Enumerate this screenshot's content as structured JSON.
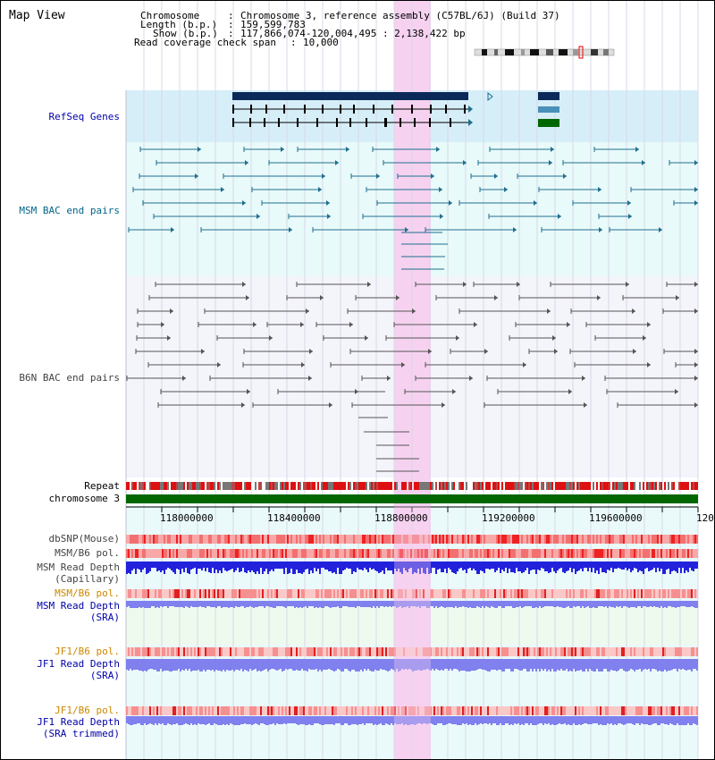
{
  "title": "Map View",
  "info": {
    "chromosome_label": "Chromosome",
    "chromosome_value": "Chromosome 3, reference assembly (C57BL/6J) (Build 37)",
    "length_label": "Length (b.p.)",
    "length_value": "159,599,783",
    "show_label": "Show (b.p.)",
    "show_value": "117,866,074-120,004,495 : 2,138,422 bp",
    "coverage_label": "Read coverage check span",
    "coverage_value": "10,000"
  },
  "tracks": {
    "refseq": "RefSeq Genes",
    "msm_bac": "MSM BAC end pairs",
    "b6n_bac": "B6N BAC end pairs",
    "repeat": "Repeat",
    "chromosome": "chromosome 3",
    "dbsnp": "dbSNP(Mouse)",
    "msm_b6_pol": "MSM/B6 pol.",
    "msm_depth_cap_1": "MSM Read Depth",
    "msm_depth_cap_2": "(Capillary)",
    "msm_b6_pol_sra": "MSM/B6 pol.",
    "msm_depth_sra_1": "MSM Read Depth",
    "msm_depth_sra_2": "(SRA)",
    "jf1_b6_pol": "JF1/B6 pol.",
    "jf1_depth_1": "JF1 Read Depth",
    "jf1_depth_2": "(SRA)",
    "jf1_b6_pol_2": "JF1/B6 pol.",
    "jf1_trim_1": "JF1 Read Depth",
    "jf1_trim_2": "(SRA trimmed)"
  },
  "axis": {
    "ticks": [
      "118000000",
      "118400000",
      "118800000",
      "119200000",
      "119600000",
      "120"
    ]
  },
  "colors": {
    "refseq_bg": "#d6eef8",
    "msm_bg": "#e8fafa",
    "b6n_bg": "#f4f4fb",
    "highlight": "#f6d2f0",
    "navy_gene": "#0b2a5a",
    "teal_pair": "#1f6f8f",
    "gray_pair": "#555555",
    "chromosome_green": "#006600",
    "depth_blue": "#2222dd",
    "depth_lightblue": "#8080ee"
  }
}
